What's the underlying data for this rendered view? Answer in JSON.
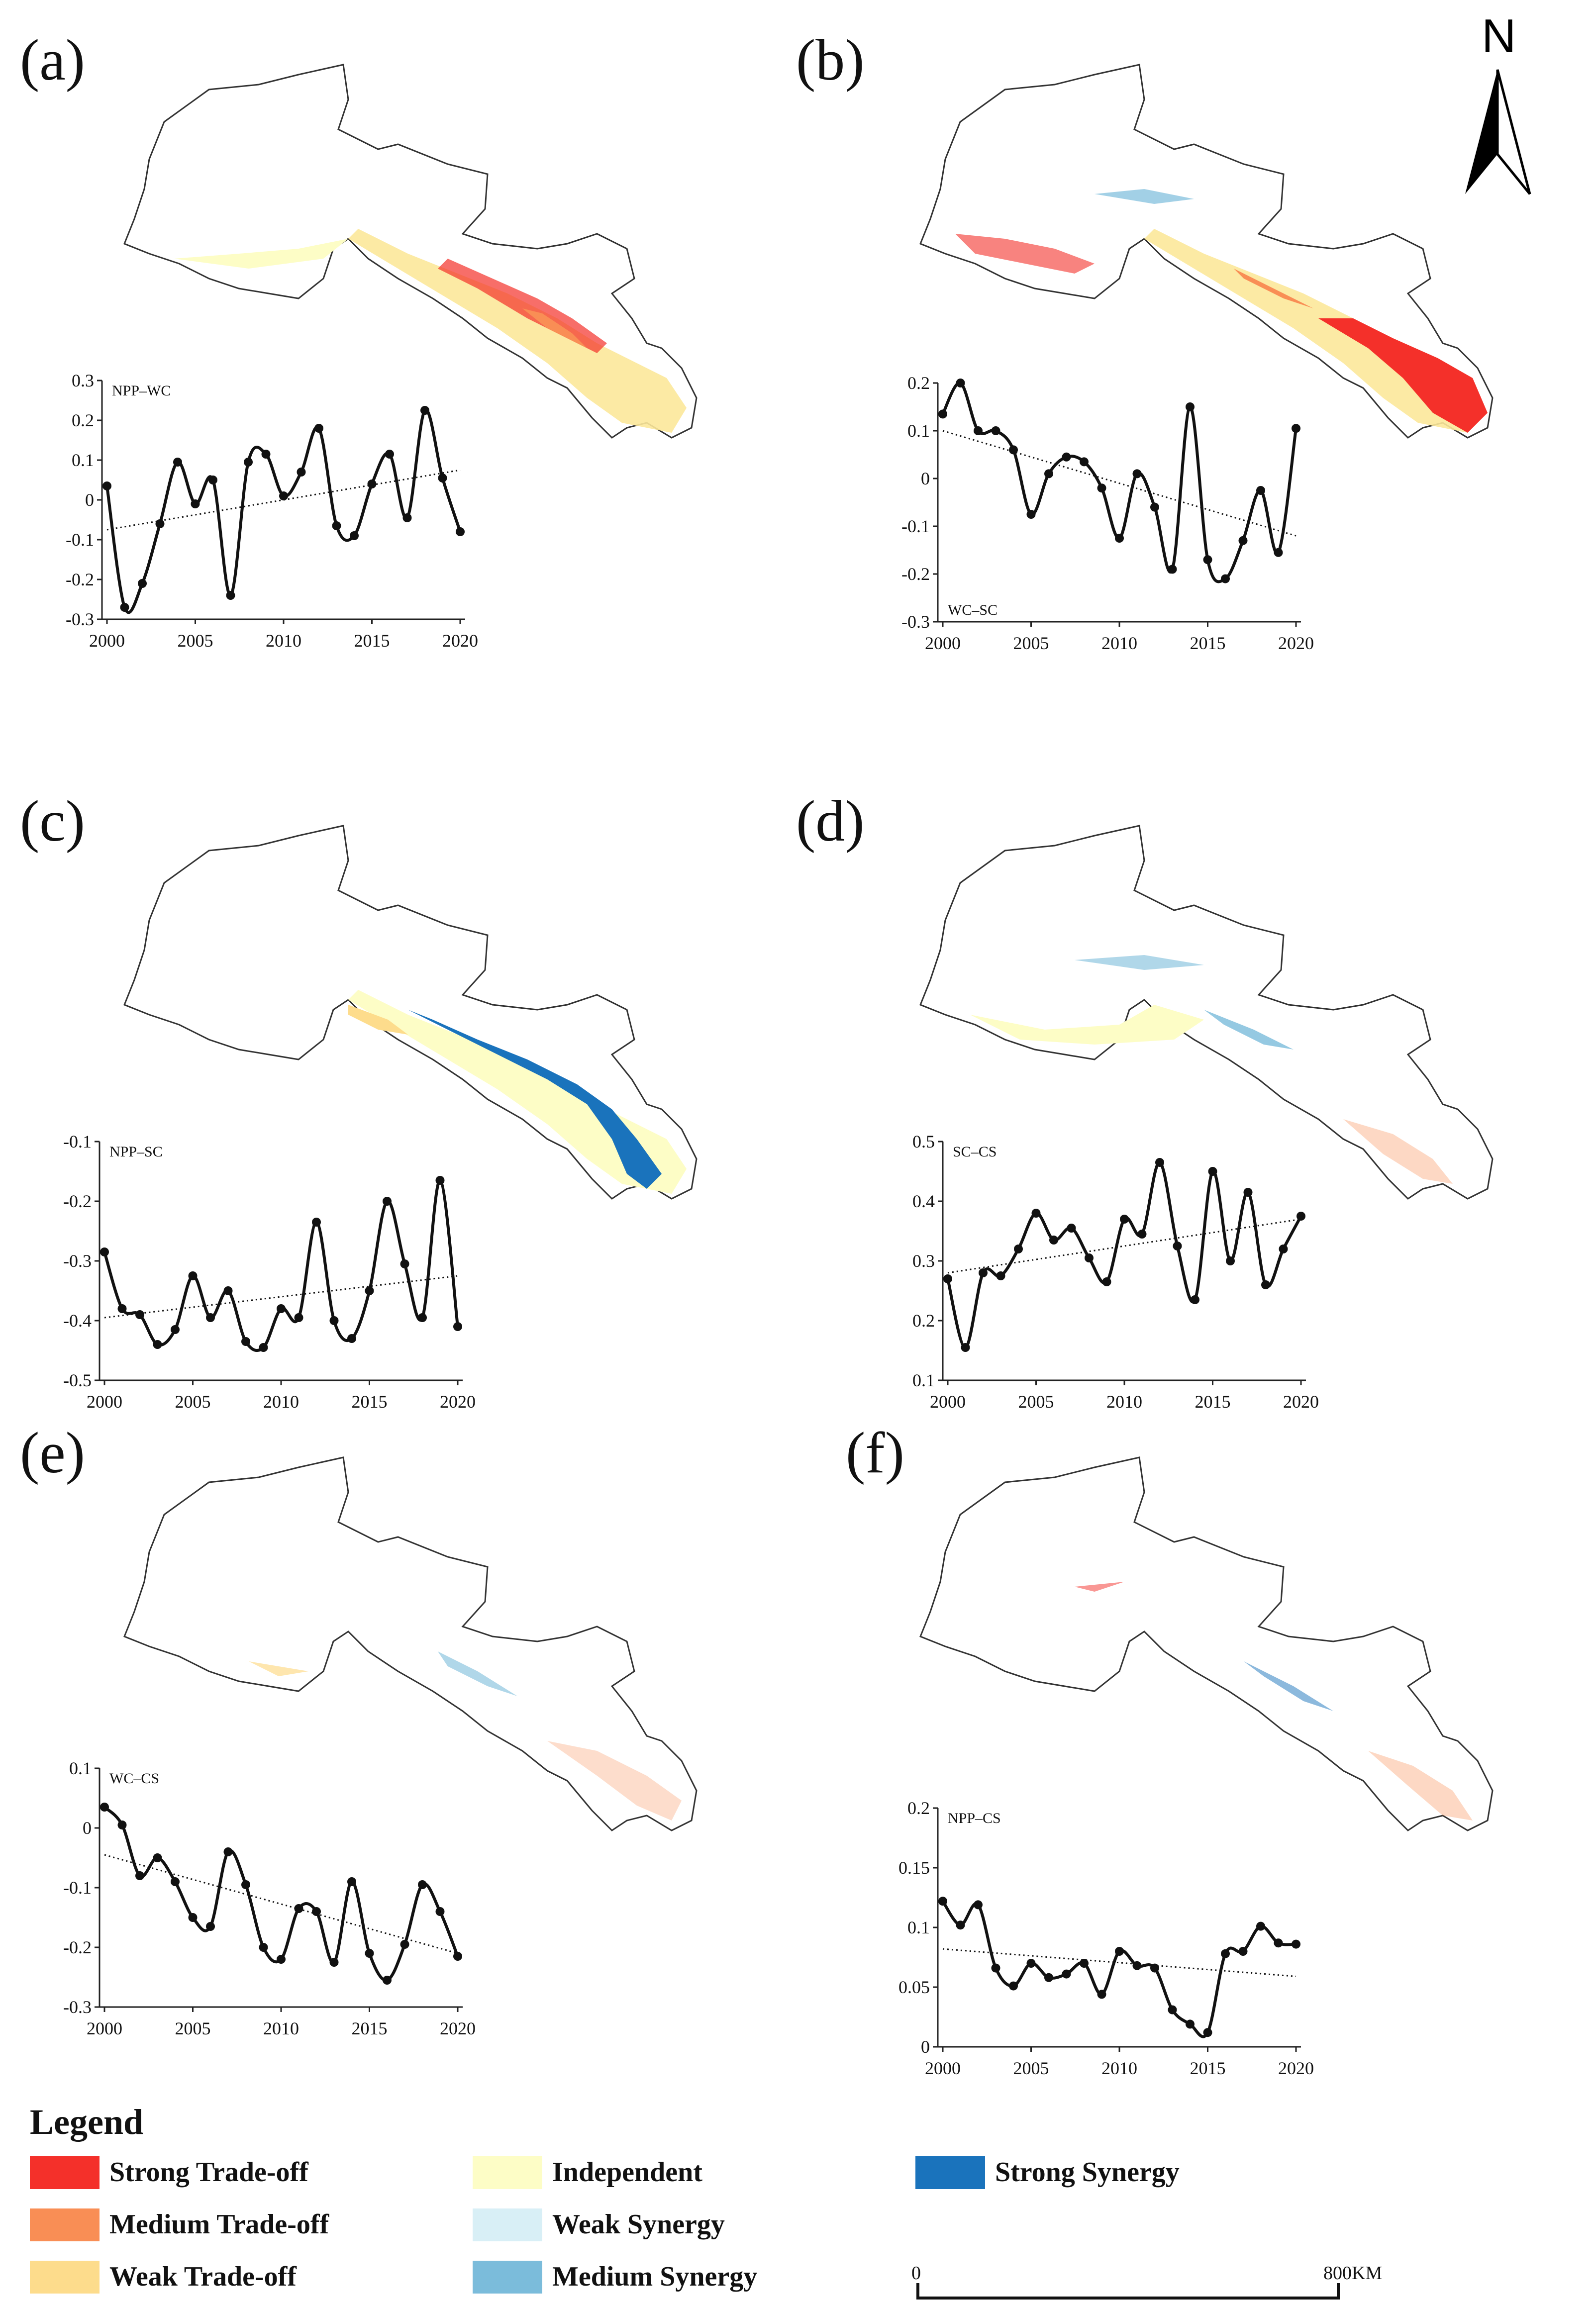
{
  "panels": [
    {
      "label": "(a)",
      "map_theme": "tradeoff-east"
    },
    {
      "label": "(b)",
      "map_theme": "strong-tradeoff"
    },
    {
      "label": "(c)",
      "map_theme": "synergy-belt"
    },
    {
      "label": "(d)",
      "map_theme": "mixed-sparse"
    },
    {
      "label": "(e)",
      "map_theme": "sparse"
    },
    {
      "label": "(f)",
      "map_theme": "sparse"
    }
  ],
  "north_arrow": {
    "label": "N"
  },
  "scale_bar": {
    "start": "0",
    "end": "800KM"
  },
  "legend": {
    "title": "Legend",
    "items": [
      {
        "label": "Strong Trade-off",
        "color": "#f4302a"
      },
      {
        "label": "Medium Trade-off",
        "color": "#f98e55"
      },
      {
        "label": "Weak Trade-off",
        "color": "#fddc8c"
      },
      {
        "label": "Independent",
        "color": "#fdfdc6"
      },
      {
        "label": "Weak Synergy",
        "color": "#d8eff6"
      },
      {
        "label": "Medium Synergy",
        "color": "#7bbcdb"
      },
      {
        "label": "Strong Synergy",
        "color": "#1a73bc"
      }
    ]
  },
  "chart_data": [
    {
      "type": "line",
      "panel": "(a)",
      "title": "NPP–WC",
      "x": [
        2000,
        2001,
        2002,
        2003,
        2004,
        2005,
        2006,
        2007,
        2008,
        2009,
        2010,
        2011,
        2012,
        2013,
        2014,
        2015,
        2016,
        2017,
        2018,
        2019,
        2020
      ],
      "values": [
        0.035,
        -0.27,
        -0.21,
        -0.06,
        0.095,
        -0.01,
        0.05,
        -0.24,
        0.095,
        0.115,
        0.01,
        0.07,
        0.18,
        -0.065,
        -0.09,
        0.04,
        0.115,
        -0.045,
        0.225,
        0.055,
        -0.08
      ],
      "trend": [
        -0.075,
        0.075
      ],
      "ylim": [
        -0.3,
        0.3
      ],
      "yticks": [
        "0.3",
        "0.2",
        "0.1",
        "0",
        "-0.1",
        "-0.2",
        "-0.3"
      ],
      "xticks": [
        "2000",
        "2005",
        "2010",
        "2015",
        "2020"
      ],
      "label_pos": "top"
    },
    {
      "type": "line",
      "panel": "(b)",
      "title": "WC–SC",
      "x": [
        2000,
        2001,
        2002,
        2003,
        2004,
        2005,
        2006,
        2007,
        2008,
        2009,
        2010,
        2011,
        2012,
        2013,
        2014,
        2015,
        2016,
        2017,
        2018,
        2019,
        2020
      ],
      "values": [
        0.135,
        0.2,
        0.1,
        0.1,
        0.06,
        -0.075,
        0.01,
        0.045,
        0.035,
        -0.02,
        -0.125,
        0.01,
        -0.06,
        -0.19,
        0.15,
        -0.17,
        -0.21,
        -0.13,
        -0.025,
        -0.155,
        0.105
      ],
      "trend": [
        0.1,
        -0.12
      ],
      "ylim": [
        -0.3,
        0.2
      ],
      "yticks": [
        "0.2",
        "0.1",
        "0",
        "-0.1",
        "-0.2",
        "-0.3"
      ],
      "xticks": [
        "2000",
        "2005",
        "2010",
        "2015",
        "2020"
      ],
      "label_pos": "bottom"
    },
    {
      "type": "line",
      "panel": "(c)",
      "title": "NPP–SC",
      "x": [
        2000,
        2001,
        2002,
        2003,
        2004,
        2005,
        2006,
        2007,
        2008,
        2009,
        2010,
        2011,
        2012,
        2013,
        2014,
        2015,
        2016,
        2017,
        2018,
        2019,
        2020
      ],
      "values": [
        -0.285,
        -0.38,
        -0.39,
        -0.44,
        -0.415,
        -0.325,
        -0.395,
        -0.35,
        -0.435,
        -0.445,
        -0.38,
        -0.395,
        -0.235,
        -0.4,
        -0.43,
        -0.35,
        -0.2,
        -0.305,
        -0.395,
        -0.165,
        -0.41
      ],
      "trend": [
        -0.395,
        -0.325
      ],
      "ylim": [
        -0.5,
        -0.1
      ],
      "yticks": [
        "-0.1",
        "-0.2",
        "-0.3",
        "-0.4",
        "-0.5"
      ],
      "xticks": [
        "2000",
        "2005",
        "2010",
        "2015",
        "2020"
      ],
      "label_pos": "top"
    },
    {
      "type": "line",
      "panel": "(d)",
      "title": "SC–CS",
      "x": [
        2000,
        2001,
        2002,
        2003,
        2004,
        2005,
        2006,
        2007,
        2008,
        2009,
        2010,
        2011,
        2012,
        2013,
        2014,
        2015,
        2016,
        2017,
        2018,
        2019,
        2020
      ],
      "values": [
        0.27,
        0.155,
        0.28,
        0.275,
        0.32,
        0.38,
        0.335,
        0.355,
        0.305,
        0.265,
        0.37,
        0.345,
        0.465,
        0.325,
        0.235,
        0.45,
        0.3,
        0.415,
        0.26,
        0.32,
        0.375
      ],
      "trend": [
        0.28,
        0.37
      ],
      "ylim": [
        0.1,
        0.5
      ],
      "yticks": [
        "0.5",
        "0.4",
        "0.3",
        "0.2",
        "0.1"
      ],
      "xticks": [
        "2000",
        "2005",
        "2010",
        "2015",
        "2020"
      ],
      "label_pos": "top"
    },
    {
      "type": "line",
      "panel": "(e)",
      "title": "WC–CS",
      "x": [
        2000,
        2001,
        2002,
        2003,
        2004,
        2005,
        2006,
        2007,
        2008,
        2009,
        2010,
        2011,
        2012,
        2013,
        2014,
        2015,
        2016,
        2017,
        2018,
        2019,
        2020
      ],
      "values": [
        0.035,
        0.005,
        -0.08,
        -0.05,
        -0.09,
        -0.15,
        -0.165,
        -0.04,
        -0.095,
        -0.2,
        -0.22,
        -0.135,
        -0.14,
        -0.225,
        -0.09,
        -0.21,
        -0.255,
        -0.195,
        -0.095,
        -0.14,
        -0.215
      ],
      "trend": [
        -0.045,
        -0.21
      ],
      "ylim": [
        -0.3,
        0.1
      ],
      "yticks": [
        "0.1",
        "0",
        "-0.1",
        "-0.2",
        "-0.3"
      ],
      "xticks": [
        "2000",
        "2005",
        "2010",
        "2015",
        "2020"
      ],
      "label_pos": "top"
    },
    {
      "type": "line",
      "panel": "(f)",
      "title": "NPP–CS",
      "x": [
        2000,
        2001,
        2002,
        2003,
        2004,
        2005,
        2006,
        2007,
        2008,
        2009,
        2010,
        2011,
        2012,
        2013,
        2014,
        2015,
        2016,
        2017,
        2018,
        2019,
        2020
      ],
      "values": [
        0.122,
        0.102,
        0.119,
        0.066,
        0.051,
        0.07,
        0.058,
        0.061,
        0.07,
        0.044,
        0.08,
        0.068,
        0.066,
        0.031,
        0.019,
        0.012,
        0.078,
        0.08,
        0.101,
        0.087,
        0.086
      ],
      "trend": [
        0.082,
        0.059
      ],
      "ylim": [
        0,
        0.2
      ],
      "yticks": [
        "0.2",
        "0.15",
        "0.1",
        "0.05",
        "0"
      ],
      "xticks": [
        "2000",
        "2005",
        "2010",
        "2015",
        "2020"
      ],
      "label_pos": "top"
    }
  ]
}
